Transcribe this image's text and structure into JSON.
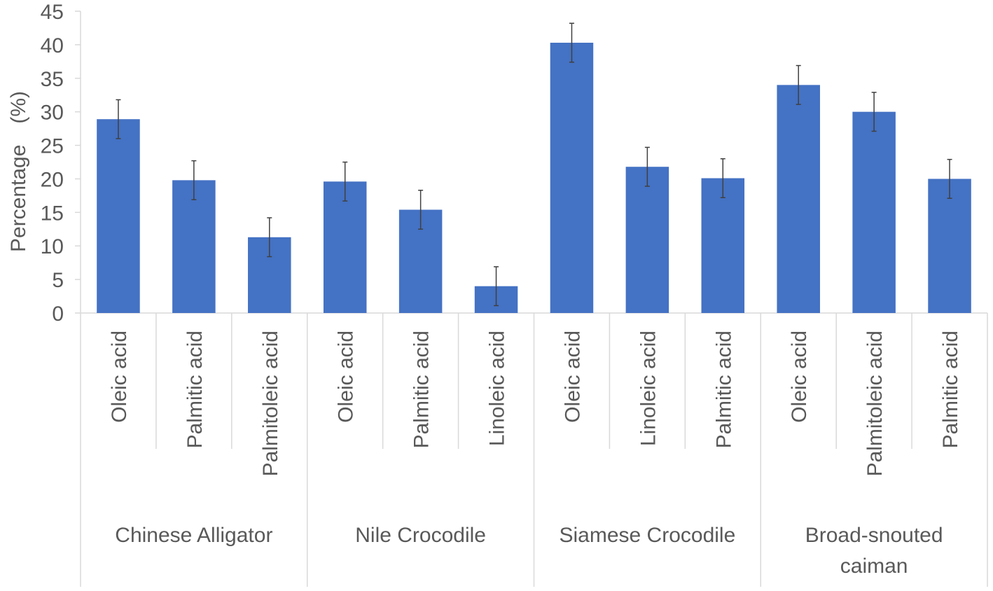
{
  "chart_data": {
    "type": "bar",
    "title": "",
    "ylabel": "Percentage　(%)",
    "ylim": [
      0,
      45
    ],
    "yticks": [
      0,
      5,
      10,
      15,
      20,
      25,
      30,
      35,
      40,
      45
    ],
    "grid": false,
    "legend": "none",
    "bar_color": "#4472C4",
    "groups": [
      {
        "label": "Chinese Alligator",
        "categories": [
          "Oleic acid",
          "Palmitic acid",
          "Palmitoleic acid"
        ],
        "values": [
          28.9,
          19.8,
          11.3
        ],
        "errors": [
          2.9,
          2.9,
          2.9
        ]
      },
      {
        "label": "Nile Crocodile",
        "categories": [
          "Oleic acid",
          "Palmitic acid",
          "Linoleic acid"
        ],
        "values": [
          19.6,
          15.4,
          4.0
        ],
        "errors": [
          2.9,
          2.9,
          2.9
        ]
      },
      {
        "label": "Siamese Crocodile",
        "categories": [
          "Oleic acid",
          "Linoleic acid",
          "Palmitic acid"
        ],
        "values": [
          40.3,
          21.8,
          20.1
        ],
        "errors": [
          2.9,
          2.9,
          2.9
        ]
      },
      {
        "label": "Broad-snouted caiman",
        "categories": [
          "Oleic acid",
          "Palmitoleic acid",
          "Palmitic acid"
        ],
        "values": [
          34.0,
          30.0,
          20.0
        ],
        "errors": [
          2.9,
          2.9,
          2.9
        ]
      }
    ]
  }
}
